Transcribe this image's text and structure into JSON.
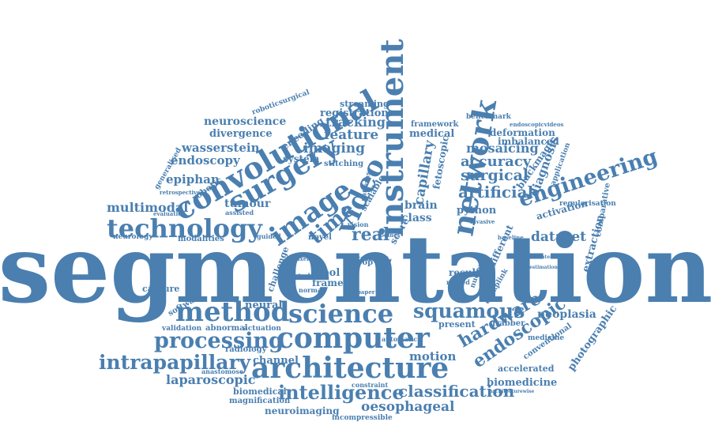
{
  "colors": {
    "text": "#4a7fb0",
    "background": "#ffffff"
  },
  "words": [
    "segmentation",
    "instrument",
    "network",
    "video",
    "image",
    "surgery",
    "convolutional",
    "technology",
    "method",
    "science",
    "computer",
    "architecture",
    "intelligence",
    "classification",
    "processing",
    "intrapapillary",
    "squamous",
    "engineering",
    "endoscopic",
    "hardware",
    "dataset",
    "artificial",
    "surgical",
    "accuracy",
    "mosaicing",
    "imaging",
    "feature",
    "tracking",
    "registration",
    "streaming",
    "neuroscience",
    "divergence",
    "wasserstein",
    "endoscopy",
    "epiphan",
    "multimodal",
    "tumour",
    "time",
    "real",
    "capillary",
    "brain",
    "class",
    "python",
    "fetoscopic",
    "medical",
    "framework",
    "benchmark",
    "deformation",
    "imbalanced",
    "diagnosis",
    "blackmagic",
    "application",
    "regularisation",
    "activation",
    "comparative",
    "extraction",
    "neoplasia",
    "photographic",
    "biomedicine",
    "accelerated",
    "conventional",
    "laparoscopic",
    "biomedical",
    "magnification",
    "neuroimaging",
    "incompressible",
    "oesophageal",
    "motion",
    "channel",
    "neural",
    "frame",
    "tool",
    "capture",
    "software",
    "validation",
    "abnormal",
    "radiology",
    "anastomose",
    "actuation",
    "modalities",
    "neurology",
    "robotic",
    "generalised",
    "system",
    "encoding",
    "stitching",
    "scalable",
    "roboticsurgical",
    "endoscopicvideos",
    "result",
    "present",
    "grabber",
    "different",
    "evaluation",
    "retrospective",
    "assisted",
    "cancer",
    "nested",
    "normal",
    "study",
    "challenge",
    "vision",
    "loop",
    "cell",
    "score",
    "novel",
    "guided",
    "pixel",
    "paper",
    "patterns",
    "toolnet",
    "constraint",
    "medicine",
    "baseline",
    "concatenation",
    "estimation",
    "deckplink",
    "nuclear",
    "invasive",
    "automatic",
    "architecturewise"
  ]
}
